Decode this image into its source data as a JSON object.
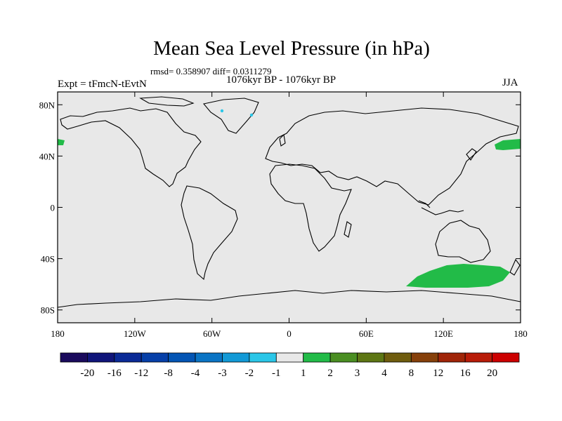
{
  "title": "Mean Sea Level Pressure (in hPa)",
  "stats": "rmsd= 0.358907 diff= 0.0311279",
  "period": "1076kyr BP - 1076kyr BP",
  "experiment": "Expt = tFmcN-tEvtN",
  "season": "JJA",
  "lat_ticks": [
    "80N",
    "40N",
    "0",
    "40S",
    "80S"
  ],
  "lon_ticks": [
    "180",
    "120W",
    "60W",
    "0",
    "60E",
    "120E",
    "180"
  ],
  "colorbar": {
    "labels": [
      "-20",
      "-16",
      "-12",
      "-8",
      "-4",
      "-3",
      "-2",
      "-1",
      "1",
      "2",
      "3",
      "4",
      "8",
      "12",
      "16",
      "20"
    ],
    "colors": [
      "#1a0a5c",
      "#10157a",
      "#0a2a96",
      "#063fa8",
      "#0355b4",
      "#0a74c4",
      "#1299d6",
      "#2ac6e8",
      "#e8e8e8",
      "#22bb48",
      "#4a8e22",
      "#5d7614",
      "#6f5c0e",
      "#86400a",
      "#a02508",
      "#b81c08",
      "#cc0000"
    ]
  },
  "colors": {
    "map_bg": "#e8e8e8",
    "positive": "#22bb48",
    "negative": "#2ac6e8"
  }
}
